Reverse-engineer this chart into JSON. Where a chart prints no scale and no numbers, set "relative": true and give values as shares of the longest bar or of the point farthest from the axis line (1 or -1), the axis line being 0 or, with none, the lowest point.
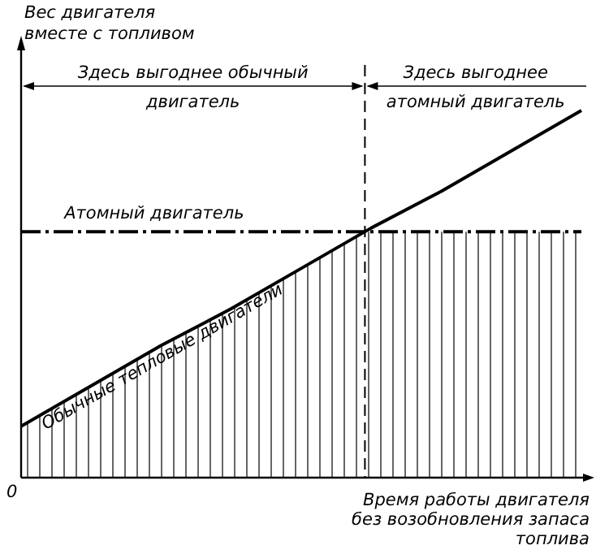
{
  "chart_data": {
    "type": "line",
    "relative": true,
    "xlabel": "Время работы двигателя без возобновления запаса топлива",
    "ylabel": "Вес двигателя вместе с топливом",
    "categories": [
      null,
      null,
      null,
      null,
      null,
      null,
      null,
      null,
      null
    ],
    "series": [
      {
        "name": "Обычные тепловые двигатели",
        "color": "#000000",
        "line_style": "solid",
        "values": [
          0.14,
          0.25,
          0.36,
          0.46,
          0.57,
          0.68,
          0.78,
          0.89,
          1
        ]
      },
      {
        "name": "Атомный двигатель",
        "color": "#000000",
        "line_style": "dashed",
        "values": [
          0.67,
          0.67,
          0.67,
          0.67,
          0.67,
          0.67,
          0.67,
          0.67,
          0.67
        ]
      }
    ],
    "annotations": [
      "Здесь выгоднее обычный двигатель",
      "Здесь выгоднее атомный двигатель",
      "0"
    ],
    "marker": "none"
  }
}
